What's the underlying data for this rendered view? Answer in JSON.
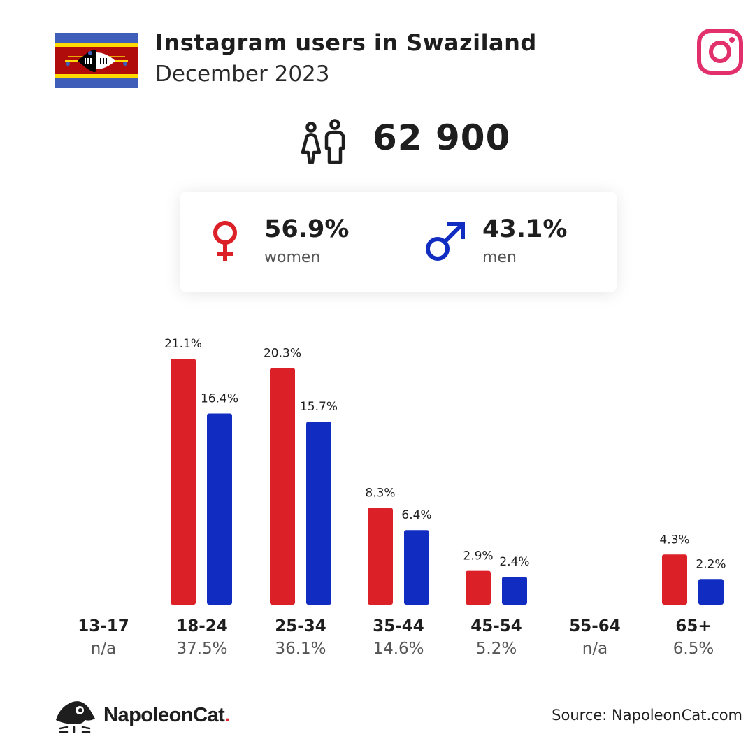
{
  "header": {
    "title": "Instagram users in Swaziland",
    "subtitle": "December 2023",
    "flag_icon": "swaziland-flag-icon",
    "platform_icon": "instagram-icon"
  },
  "total": {
    "icon": "people-icon",
    "value": "62 900"
  },
  "gender": {
    "women": {
      "pct": "56.9%",
      "label": "women",
      "icon": "female-symbol-icon",
      "color": "#dc2027"
    },
    "men": {
      "pct": "43.1%",
      "label": "men",
      "icon": "male-symbol-icon",
      "color": "#112cc1"
    }
  },
  "chart_data": {
    "type": "bar",
    "categories": [
      "13-17",
      "18-24",
      "25-34",
      "35-44",
      "45-54",
      "55-64",
      "65+"
    ],
    "series": [
      {
        "name": "women",
        "color": "#dc2027",
        "values": [
          null,
          21.1,
          20.3,
          8.3,
          2.9,
          null,
          4.3
        ]
      },
      {
        "name": "men",
        "color": "#112cc1",
        "values": [
          null,
          16.4,
          15.7,
          6.4,
          2.4,
          null,
          2.2
        ]
      }
    ],
    "value_labels": {
      "women": [
        "",
        "21.1%",
        "20.3%",
        "8.3%",
        "2.9%",
        "",
        "4.3%"
      ],
      "men": [
        "",
        "16.4%",
        "15.7%",
        "6.4%",
        "2.4%",
        "",
        "2.2%"
      ]
    },
    "category_shares": [
      "n/a",
      "37.5%",
      "36.1%",
      "14.6%",
      "5.2%",
      "n/a",
      "6.5%"
    ],
    "grid": false
  },
  "footer": {
    "brand": "NapoleonCat",
    "brand_dot": ".",
    "source": "Source: NapoleonCat.com",
    "logo_icon": "napoleoncat-logo-icon"
  }
}
